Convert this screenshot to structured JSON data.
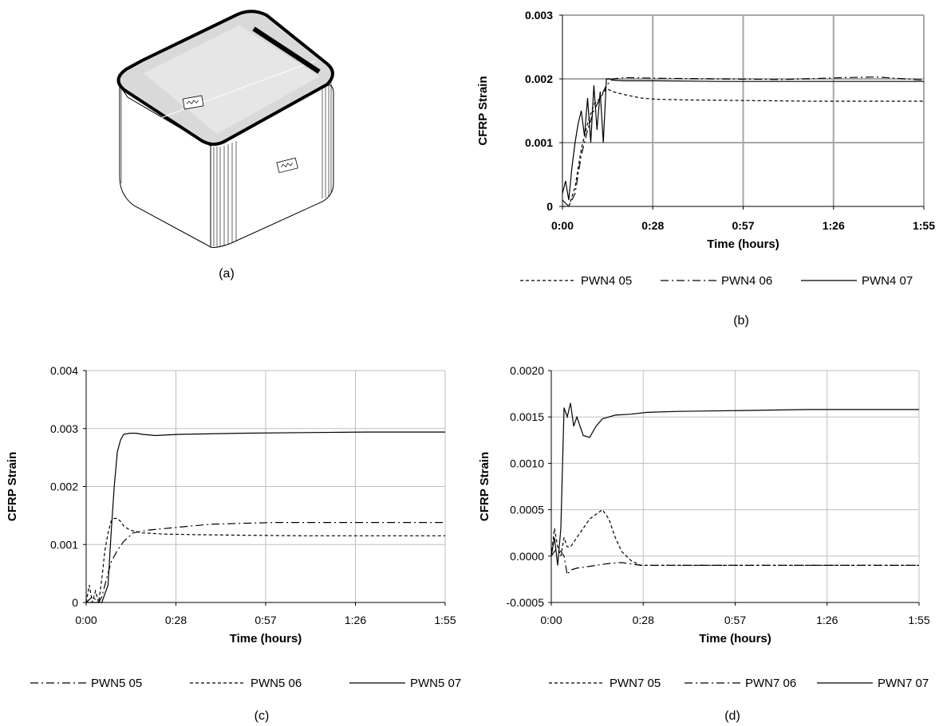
{
  "figure": {
    "captions": [
      "(a)",
      "(b)",
      "(c)",
      "(d)"
    ],
    "label_plate_text": "~W~"
  },
  "chart_data": [
    {
      "id": "b",
      "type": "line",
      "ylabel": "CFRP Strain",
      "xlabel": "Time (hours)",
      "x_ticks": [
        "0:00",
        "0:28",
        "0:57",
        "1:26",
        "1:55"
      ],
      "x_unit": "minutes",
      "xlim": [
        0,
        115
      ],
      "ylim": [
        0,
        0.003
      ],
      "y_ticks": [
        0,
        0.001,
        0.002,
        0.003
      ],
      "y_tick_labels": [
        "0",
        "0.001",
        "0.002",
        "0.003"
      ],
      "grid": true,
      "legend_position": "bottom",
      "series": [
        {
          "name": "PWN4 05",
          "dash": "dashed",
          "x": [
            0,
            2,
            4,
            6,
            8,
            10,
            12,
            14,
            16,
            20,
            25,
            30,
            40,
            60,
            80,
            100,
            115
          ],
          "y": [
            0,
            0,
            0.0003,
            0.0009,
            0.0013,
            0.0016,
            0.0017,
            0.00185,
            0.0018,
            0.00175,
            0.0017,
            0.00168,
            0.00167,
            0.00166,
            0.00165,
            0.00165,
            0.00165
          ]
        },
        {
          "name": "PWN4 06",
          "dash": "dashdot",
          "x": [
            0,
            2,
            4,
            6,
            8,
            10,
            12,
            14,
            16,
            20,
            30,
            50,
            70,
            90,
            100,
            115
          ],
          "y": [
            0.0001,
            0,
            0.0002,
            0.0008,
            0.0012,
            0.0015,
            0.0017,
            0.0019,
            0.002,
            0.00202,
            0.00201,
            0.002,
            0.00199,
            0.00202,
            0.00203,
            0.00198
          ]
        },
        {
          "name": "PWN4 07",
          "dash": "solid",
          "x": [
            0,
            1,
            2,
            3,
            4,
            5,
            6,
            7,
            8,
            9,
            10,
            11,
            12,
            13,
            14,
            15,
            16,
            20,
            30,
            50,
            70,
            90,
            115
          ],
          "y": [
            0.0002,
            0.0004,
            0.0001,
            0.0006,
            0.001,
            0.0013,
            0.0015,
            0.0011,
            0.0017,
            0.001,
            0.0019,
            0.0012,
            0.0018,
            0.001,
            0.002,
            0.002,
            0.00198,
            0.00197,
            0.00197,
            0.00196,
            0.00196,
            0.00196,
            0.00196
          ]
        }
      ]
    },
    {
      "id": "c",
      "type": "line",
      "ylabel": "CFRP Strain",
      "xlabel": "Time (hours)",
      "x_ticks": [
        "0:00",
        "0:28",
        "0:57",
        "1:26",
        "1:55"
      ],
      "x_unit": "minutes",
      "xlim": [
        0,
        115
      ],
      "ylim": [
        0,
        0.004
      ],
      "y_ticks": [
        0,
        0.001,
        0.002,
        0.003,
        0.004
      ],
      "y_tick_labels": [
        "0",
        "0.001",
        "0.002",
        "0.003",
        "0.004"
      ],
      "grid": true,
      "legend_position": "bottom",
      "series": [
        {
          "name": "PWN5 05",
          "dash": "dashdot",
          "x": [
            0,
            2,
            4,
            5,
            6,
            7,
            8,
            10,
            12,
            15,
            20,
            30,
            40,
            60,
            80,
            100,
            115
          ],
          "y": [
            0,
            0.0001,
            0,
            0.0001,
            0.0003,
            0.0005,
            0.0007,
            0.0009,
            0.00105,
            0.0012,
            0.00125,
            0.0013,
            0.00135,
            0.00138,
            0.00138,
            0.00138,
            0.00138
          ]
        },
        {
          "name": "PWN5 06",
          "dash": "dashed",
          "x": [
            0,
            1,
            2,
            3,
            4,
            5,
            6,
            7,
            8,
            9,
            10,
            11,
            12,
            14,
            18,
            25,
            35,
            50,
            70,
            90,
            115
          ],
          "y": [
            0,
            0.0003,
            0,
            0.0002,
            0,
            0.0004,
            0.0009,
            0.0012,
            0.0014,
            0.00145,
            0.00145,
            0.0014,
            0.00132,
            0.00125,
            0.0012,
            0.00118,
            0.00117,
            0.00116,
            0.00115,
            0.00115,
            0.00115
          ]
        },
        {
          "name": "PWN5 07",
          "dash": "solid",
          "x": [
            0,
            5,
            7,
            8,
            9,
            10,
            11,
            12,
            14,
            16,
            18,
            22,
            30,
            50,
            70,
            90,
            115
          ],
          "y": [
            0,
            0,
            0.0003,
            0.0012,
            0.002,
            0.0026,
            0.0028,
            0.0029,
            0.00292,
            0.00292,
            0.0029,
            0.00288,
            0.0029,
            0.00292,
            0.00293,
            0.00294,
            0.00294
          ]
        }
      ]
    },
    {
      "id": "d",
      "type": "line",
      "ylabel": "CFRP Strain",
      "xlabel": "Time (hours)",
      "x_ticks": [
        "0:00",
        "0:28",
        "0:57",
        "1:26",
        "1:55"
      ],
      "x_unit": "minutes",
      "xlim": [
        0,
        115
      ],
      "ylim": [
        -0.0005,
        0.002
      ],
      "y_ticks": [
        -0.0005,
        0,
        0.0005,
        0.001,
        0.0015,
        0.002
      ],
      "y_tick_labels": [
        "-0.0005",
        "0.0000",
        "0.0005",
        "0.0010",
        "0.0015",
        "0.0020"
      ],
      "grid": true,
      "legend_position": "bottom",
      "series": [
        {
          "name": "PWN7 05",
          "dash": "dashed",
          "x": [
            0,
            1,
            2,
            3,
            4,
            5,
            6,
            8,
            10,
            12,
            14,
            16,
            18,
            20,
            22,
            25,
            28,
            35,
            50,
            70,
            90,
            115
          ],
          "y": [
            0,
            0.0003,
            0.0001,
            0,
            0.0002,
            0.0001,
            0.0001,
            0.0002,
            0.0003,
            0.0004,
            0.00045,
            0.0005,
            0.0004,
            0.0002,
            5e-05,
            -5e-05,
            -0.0001,
            -0.0001,
            -0.0001,
            -0.0001,
            -0.0001,
            -0.0001
          ]
        },
        {
          "name": "PWN7 06",
          "dash": "dashdot",
          "x": [
            0,
            2,
            4,
            5,
            6,
            8,
            10,
            14,
            18,
            22,
            28,
            40,
            60,
            80,
            100,
            115
          ],
          "y": [
            0,
            0.0001,
            0,
            -0.0002,
            -0.00015,
            -0.00013,
            -0.00012,
            -0.0001,
            -8e-05,
            -7e-05,
            -0.0001,
            -0.0001,
            -0.0001,
            -0.0001,
            -0.0001,
            -0.0001
          ]
        },
        {
          "name": "PWN7 07",
          "dash": "solid",
          "x": [
            0,
            1,
            2,
            3,
            4,
            5,
            6,
            7,
            8,
            10,
            12,
            14,
            16,
            18,
            20,
            25,
            30,
            40,
            60,
            80,
            100,
            115
          ],
          "y": [
            0,
            0.0002,
            -0.0001,
            0.0003,
            0.0016,
            0.0015,
            0.00165,
            0.0014,
            0.0015,
            0.0013,
            0.00128,
            0.0014,
            0.00148,
            0.0015,
            0.00152,
            0.00153,
            0.00155,
            0.00156,
            0.00157,
            0.00158,
            0.00158,
            0.00158
          ]
        }
      ]
    }
  ]
}
